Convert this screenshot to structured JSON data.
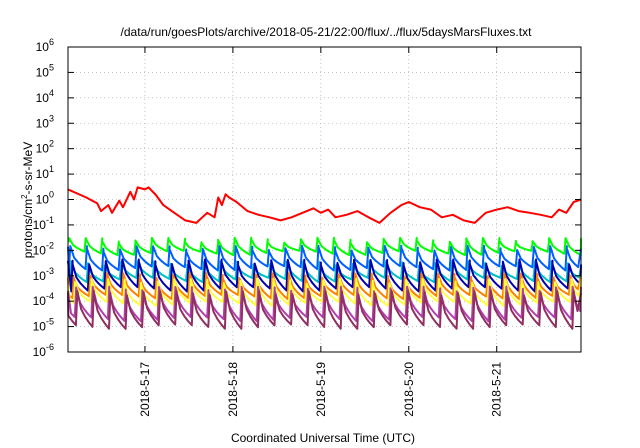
{
  "chart_data": {
    "type": "line",
    "title": "/data/run/goesPlots/archive/2018-05-21/22:00/flux/../flux/5daysMarsFluxes.txt",
    "xlabel": "Coordinated Universal Time (UTC)",
    "ylabel": "protons/cm²-s-sr-MeV",
    "ylabel_parts": {
      "base": "protons/cm",
      "sup": "2",
      "rest": "-s-sr-MeV"
    },
    "yscale": "log",
    "ylim": [
      1e-06,
      1000000.0
    ],
    "y_ticks": [
      {
        "value": 1e-06,
        "mantissa": "10",
        "exp": "-6"
      },
      {
        "value": 1e-05,
        "mantissa": "10",
        "exp": "-5"
      },
      {
        "value": 0.0001,
        "mantissa": "10",
        "exp": "-4"
      },
      {
        "value": 0.001,
        "mantissa": "10",
        "exp": "-3"
      },
      {
        "value": 0.01,
        "mantissa": "10",
        "exp": "-2"
      },
      {
        "value": 0.1,
        "mantissa": "10",
        "exp": "-1"
      },
      {
        "value": 1.0,
        "mantissa": "10",
        "exp": "0"
      },
      {
        "value": 10.0,
        "mantissa": "10",
        "exp": "1"
      },
      {
        "value": 100.0,
        "mantissa": "10",
        "exp": "2"
      },
      {
        "value": 1000.0,
        "mantissa": "10",
        "exp": "3"
      },
      {
        "value": 10000.0,
        "mantissa": "10",
        "exp": "4"
      },
      {
        "value": 100000.0,
        "mantissa": "10",
        "exp": "5"
      },
      {
        "value": 1000000.0,
        "mantissa": "10",
        "exp": "6"
      }
    ],
    "xlim": [
      "2018-05-16T03:00",
      "2018-05-21T23:00"
    ],
    "x_ticks": [
      {
        "value": "2018-05-17T00:00",
        "label": "2018-5-17"
      },
      {
        "value": "2018-05-18T00:00",
        "label": "2018-5-18"
      },
      {
        "value": "2018-05-19T00:00",
        "label": "2018-5-19"
      },
      {
        "value": "2018-05-20T00:00",
        "label": "2018-5-20"
      },
      {
        "value": "2018-05-21T00:00",
        "label": "2018-5-21"
      }
    ],
    "grid": true,
    "legend": "none",
    "series": [
      {
        "color": "#ff0000",
        "x": [
          "2018-05-16T03:00",
          "2018-05-16T08:00",
          "2018-05-16T11:00",
          "2018-05-16T12:00",
          "2018-05-16T14:00",
          "2018-05-16T15:00",
          "2018-05-16T17:00",
          "2018-05-16T18:00",
          "2018-05-16T20:00",
          "2018-05-16T21:00",
          "2018-05-16T22:00",
          "2018-05-17T00:00",
          "2018-05-17T01:00",
          "2018-05-17T03:00",
          "2018-05-17T05:00",
          "2018-05-17T08:00",
          "2018-05-17T11:00",
          "2018-05-17T14:00",
          "2018-05-17T17:00",
          "2018-05-17T19:00",
          "2018-05-17T20:00",
          "2018-05-17T21:00",
          "2018-05-17T22:00",
          "2018-05-17T23:00",
          "2018-05-18T01:00",
          "2018-05-18T04:00",
          "2018-05-18T07:00",
          "2018-05-18T10:00",
          "2018-05-18T13:00",
          "2018-05-18T16:00",
          "2018-05-18T19:00",
          "2018-05-18T22:00",
          "2018-05-19T00:00",
          "2018-05-19T02:00",
          "2018-05-19T04:00",
          "2018-05-19T07:00",
          "2018-05-19T10:00",
          "2018-05-19T13:00",
          "2018-05-19T16:00",
          "2018-05-19T19:00",
          "2018-05-19T22:00",
          "2018-05-20T00:00",
          "2018-05-20T03:00",
          "2018-05-20T06:00",
          "2018-05-20T09:00",
          "2018-05-20T12:00",
          "2018-05-20T15:00",
          "2018-05-20T18:00",
          "2018-05-20T21:00",
          "2018-05-21T00:00",
          "2018-05-21T03:00",
          "2018-05-21T06:00",
          "2018-05-21T09:00",
          "2018-05-21T12:00",
          "2018-05-21T15:00",
          "2018-05-21T17:00",
          "2018-05-21T19:00",
          "2018-05-21T21:00",
          "2018-05-21T23:00"
        ],
        "values": [
          2.5,
          1.2,
          0.7,
          0.35,
          0.6,
          0.3,
          0.9,
          0.5,
          2.0,
          1.0,
          3.0,
          2.5,
          3.0,
          1.5,
          0.6,
          0.3,
          0.15,
          0.12,
          0.3,
          0.2,
          1.2,
          0.6,
          1.6,
          1.2,
          0.8,
          0.35,
          0.25,
          0.2,
          0.15,
          0.2,
          0.3,
          0.45,
          0.3,
          0.4,
          0.2,
          0.25,
          0.35,
          0.2,
          0.12,
          0.3,
          0.6,
          0.8,
          0.5,
          0.4,
          0.2,
          0.25,
          0.15,
          0.12,
          0.3,
          0.4,
          0.5,
          0.35,
          0.3,
          0.25,
          0.2,
          0.4,
          0.3,
          0.8,
          1.0
        ]
      },
      {
        "color": "#00ff00",
        "baseline": [
          0.008,
          0.025
        ],
        "teeth": 31
      },
      {
        "color": "#0060ff",
        "baseline": [
          0.002,
          0.012
        ],
        "teeth": 31
      },
      {
        "color": "#00c0c0",
        "baseline": [
          0.0007,
          0.003
        ],
        "teeth": 31
      },
      {
        "color": "#0000b0",
        "baseline": [
          0.0003,
          0.0035
        ],
        "teeth": 31
      },
      {
        "color": "#ff8000",
        "baseline": [
          0.00015,
          0.001
        ],
        "teeth": 31
      },
      {
        "color": "#ffff40",
        "baseline": [
          8e-05,
          0.0006
        ],
        "teeth": 31
      },
      {
        "color": "#b040b0",
        "baseline": [
          2e-05,
          0.0003
        ],
        "teeth": 31
      },
      {
        "color": "#903060",
        "baseline": [
          1e-05,
          0.0002
        ],
        "teeth": 31
      }
    ]
  }
}
